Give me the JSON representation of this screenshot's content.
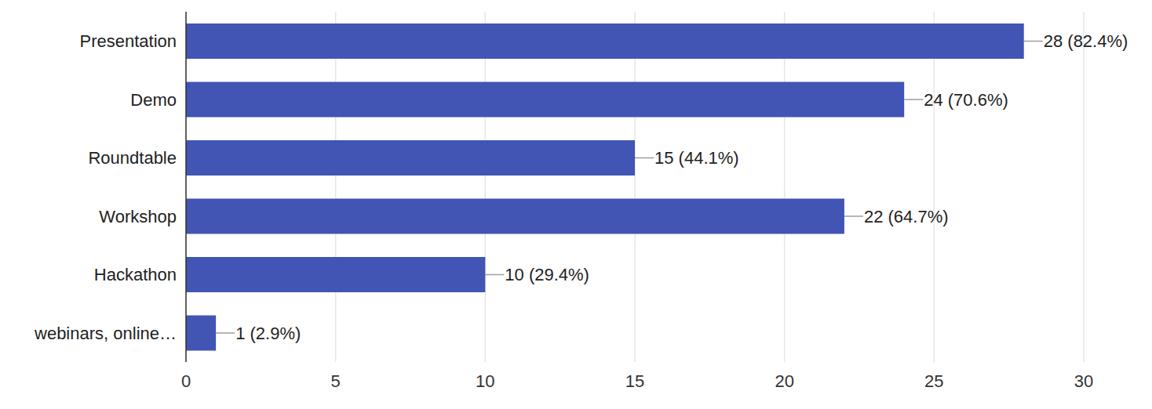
{
  "chart_data": {
    "type": "bar",
    "orientation": "horizontal",
    "categories": [
      "Presentation",
      "Demo",
      "Roundtable",
      "Workshop",
      "Hackathon",
      "webinars, online…"
    ],
    "values": [
      28,
      24,
      15,
      22,
      10,
      1
    ],
    "value_labels": [
      "28 (82.4%)",
      "24 (70.6%)",
      "15 (44.1%)",
      "22 (64.7%)",
      "10 (29.4%)",
      "1 (2.9%)"
    ],
    "data_labels": true,
    "color": "#4254b4",
    "xlim": [
      0,
      30
    ],
    "xticks": [
      0,
      5,
      10,
      15,
      20,
      25,
      30
    ],
    "grid": true
  }
}
